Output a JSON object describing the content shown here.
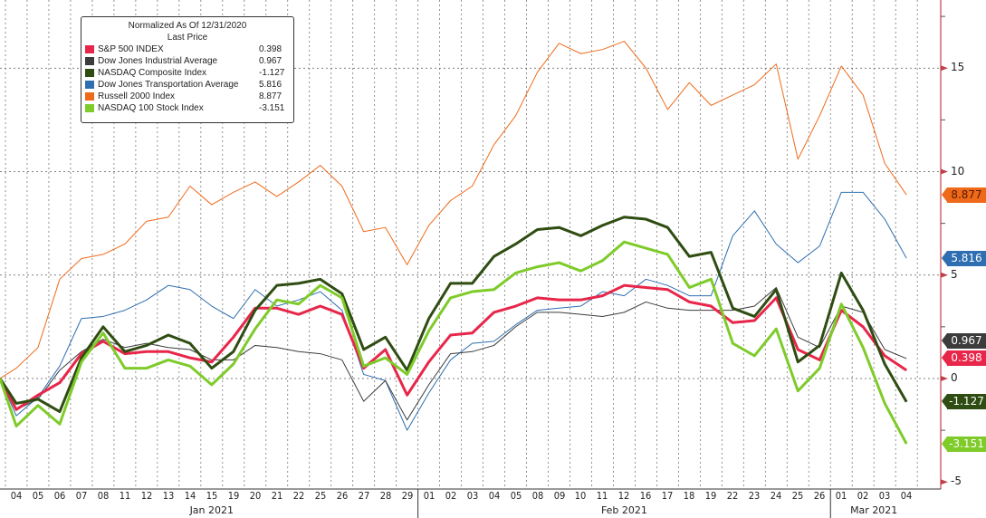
{
  "legend": {
    "title": "Normalized As Of 12/31/2020",
    "subtitle": "Last Price"
  },
  "chart_data": {
    "type": "line",
    "title": "Normalized As Of 12/31/2020",
    "x": [
      "04",
      "05",
      "06",
      "07",
      "08",
      "11",
      "12",
      "13",
      "14",
      "15",
      "19",
      "20",
      "21",
      "22",
      "25",
      "26",
      "27",
      "28",
      "29",
      "01",
      "02",
      "03",
      "04",
      "05",
      "08",
      "09",
      "10",
      "11",
      "12",
      "16",
      "17",
      "18",
      "19",
      "22",
      "23",
      "24",
      "25",
      "26",
      "01",
      "02",
      "03",
      "04"
    ],
    "x_months": [
      {
        "label": "Jan 2021",
        "count": 19
      },
      {
        "label": "Feb 2021",
        "count": 19
      },
      {
        "label": "Mar 2021",
        "count": 4
      }
    ],
    "ylim": [
      -5,
      18.5
    ],
    "yticks": [
      15,
      10,
      5,
      0,
      -5
    ],
    "grid": true,
    "legend_position": "top-left",
    "series": [
      {
        "name": "S&P 500 INDEX",
        "last": "0.398",
        "color": "#e8264a",
        "tag_text": "#ffffff",
        "values": [
          -1.5,
          -0.8,
          -0.2,
          1.2,
          1.8,
          1.2,
          1.3,
          1.3,
          1.0,
          0.8,
          2.0,
          3.4,
          3.4,
          3.1,
          3.5,
          3.1,
          0.5,
          1.4,
          -0.8,
          0.8,
          2.1,
          2.2,
          3.2,
          3.5,
          3.9,
          3.8,
          3.8,
          4.0,
          4.5,
          4.4,
          4.3,
          3.7,
          3.5,
          2.7,
          2.8,
          3.9,
          1.4,
          0.9,
          3.3,
          2.5,
          1.1,
          0.398
        ]
      },
      {
        "name": "Dow Jones Industrial Average",
        "last": "0.967",
        "color": "#3c3c3c",
        "tag_text": "#ffffff",
        "values": [
          -1.5,
          -1.0,
          0.4,
          1.3,
          1.9,
          1.5,
          1.7,
          1.5,
          1.4,
          0.9,
          0.9,
          1.6,
          1.5,
          1.3,
          1.2,
          0.9,
          -1.1,
          -0.1,
          -2.0,
          -0.3,
          1.2,
          1.3,
          1.6,
          2.5,
          3.2,
          3.2,
          3.1,
          3.0,
          3.2,
          3.7,
          3.4,
          3.3,
          3.3,
          3.3,
          3.5,
          4.4,
          2.0,
          1.5,
          3.5,
          3.2,
          1.4,
          0.967
        ]
      },
      {
        "name": "NASDAQ Composite Index",
        "last": "-1.127",
        "color": "#2f4d12",
        "tag_text": "#ffffff",
        "values": [
          -1.2,
          -1.0,
          -1.6,
          1.0,
          2.5,
          1.3,
          1.6,
          2.1,
          1.7,
          0.5,
          1.3,
          3.3,
          4.5,
          4.6,
          4.8,
          4.1,
          1.4,
          2.0,
          0.4,
          2.9,
          4.6,
          4.6,
          5.9,
          6.5,
          7.2,
          7.3,
          6.9,
          7.4,
          7.8,
          7.7,
          7.3,
          5.9,
          6.1,
          3.4,
          3.0,
          4.3,
          0.8,
          1.6,
          5.1,
          3.3,
          0.7,
          -1.127
        ]
      },
      {
        "name": "Dow Jones Transportation Average",
        "last": "5.816",
        "color": "#2f6eb0",
        "tag_text": "#ffffff",
        "values": [
          -1.8,
          -0.9,
          0.6,
          2.9,
          3.0,
          3.3,
          3.8,
          4.5,
          4.3,
          3.5,
          2.9,
          4.3,
          3.5,
          3.8,
          4.2,
          3.3,
          0.2,
          -0.1,
          -2.5,
          -0.7,
          0.9,
          1.7,
          1.8,
          2.6,
          3.3,
          3.4,
          3.5,
          4.2,
          4.0,
          4.8,
          4.5,
          4.0,
          4.0,
          6.9,
          8.1,
          6.5,
          5.6,
          6.4,
          9.0,
          9.0,
          7.7,
          5.816
        ]
      },
      {
        "name": "Russell 2000 Index",
        "last": "8.877",
        "color": "#ee6a1a",
        "tag_text": "#5a1a00",
        "values": [
          0.5,
          1.5,
          4.8,
          5.8,
          6.0,
          6.5,
          7.6,
          7.8,
          9.3,
          8.4,
          9.0,
          9.5,
          8.8,
          9.5,
          10.3,
          9.3,
          7.1,
          7.3,
          5.5,
          7.4,
          8.6,
          9.3,
          11.3,
          12.7,
          14.8,
          16.2,
          15.7,
          15.9,
          16.3,
          15.0,
          13.0,
          14.3,
          13.2,
          13.7,
          14.2,
          15.2,
          10.6,
          12.7,
          15.1,
          13.7,
          10.4,
          8.877
        ]
      },
      {
        "name": "NASDAQ 100 Stock Index",
        "last": "-3.151",
        "color": "#7ecb2a",
        "tag_text": "#ffffff",
        "values": [
          -2.3,
          -1.3,
          -2.2,
          0.8,
          2.2,
          0.5,
          0.5,
          0.9,
          0.6,
          -0.3,
          0.7,
          2.4,
          3.8,
          3.6,
          4.5,
          3.9,
          0.6,
          1.0,
          0.2,
          2.3,
          3.9,
          4.2,
          4.3,
          5.1,
          5.4,
          5.6,
          5.2,
          5.7,
          6.6,
          6.3,
          6.0,
          4.4,
          4.8,
          1.7,
          1.1,
          2.4,
          -0.6,
          0.5,
          3.6,
          1.5,
          -1.2,
          -3.151
        ]
      }
    ]
  }
}
